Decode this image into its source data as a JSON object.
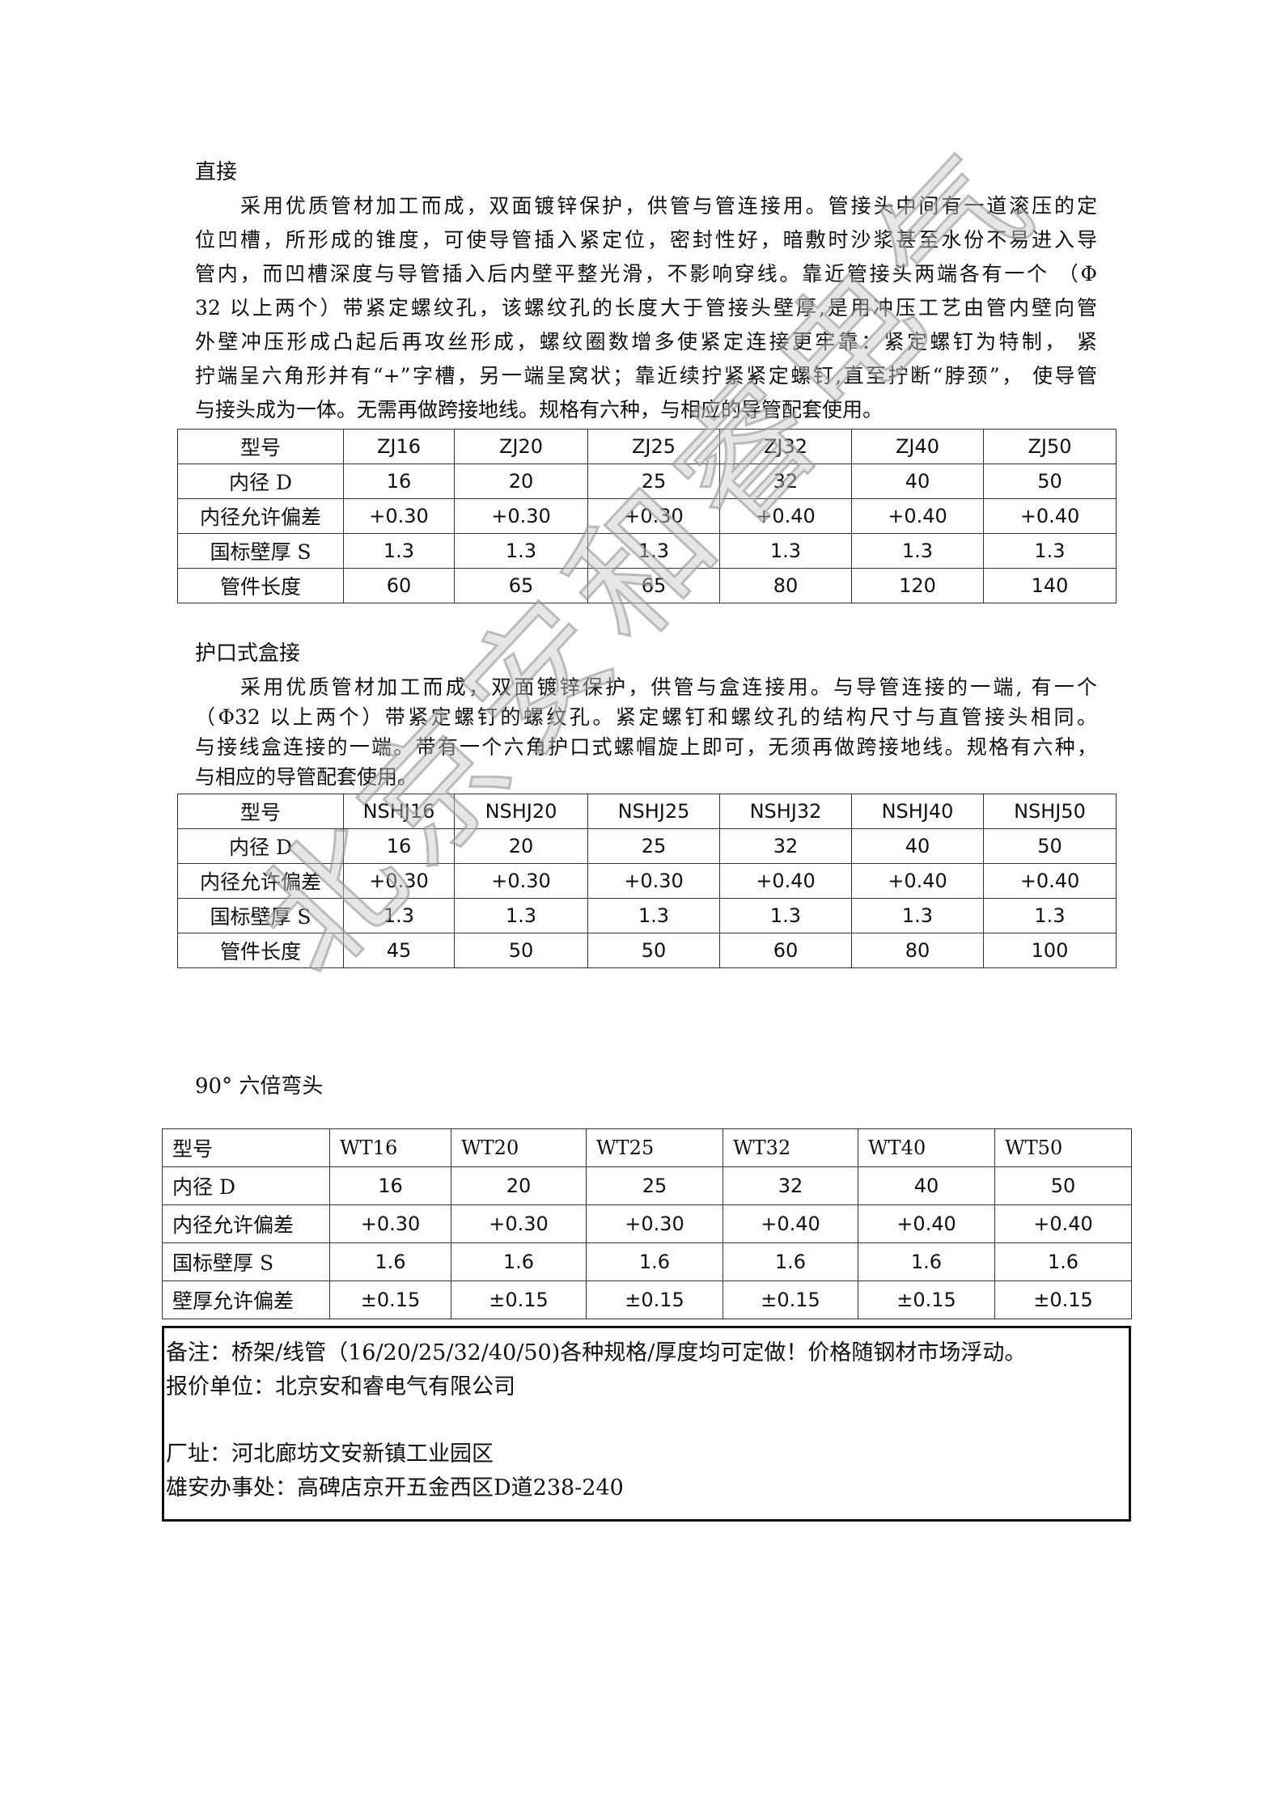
{
  "watermark": "北京安和睿电气",
  "section1": {
    "title": "直接",
    "lines": [
      "采用优质管材加工而成，双面镀锌保护，供管与管连接用。管接头中间有一道滚压的定",
      "位凹槽，所形成的锥度，可使导管插入紧定位，密封性好，暗敷时沙浆甚至水份不易进入导",
      "管内，而凹槽深度与导管插入后内壁平整光滑，不影响穿线。靠近管接头两端各有一个 （Φ",
      "32 以上两个）带紧定螺纹孔，该螺纹孔的长度大于管接头壁厚,是用冲压工艺由管内壁向管",
      "外壁冲压形成凸起后再攻丝形成，螺纹圈数增多使紧定连接更牢靠：紧定螺钉为特制， 紧",
      "拧端呈六角形并有“+”字槽，另一端呈窝状；靠近续拧紧紧定螺钉,直至拧断“脖颈”， 使导管",
      "与接头成为一体。无需再做跨接地线。规格有六种，与相应的导管配套使用。"
    ],
    "table": [
      [
        "型号",
        "ZJ16",
        "ZJ20",
        "ZJ25",
        "ZJ32",
        "ZJ40",
        "ZJ50"
      ],
      [
        "内径 D",
        "16",
        "20",
        "25",
        "32",
        "40",
        "50"
      ],
      [
        "内径允许偏差",
        "+0.30",
        "+0.30",
        "+0.30",
        "+0.40",
        "+0.40",
        "+0.40"
      ],
      [
        "国标壁厚 S",
        "1.3",
        "1.3",
        "1.3",
        "1.3",
        "1.3",
        "1.3"
      ],
      [
        "管件长度",
        "60",
        "65",
        "65",
        "80",
        "120",
        "140"
      ]
    ]
  },
  "section2": {
    "title": "护口式盒接",
    "lines": [
      "采用优质管材加工而成，双面镀锌保护，供管与盒连接用。与导管连接的一端, 有一个",
      "（Φ32 以上两个）带紧定螺钉的螺纹孔。紧定螺钉和螺纹孔的结构尺寸与直管接头相同。",
      "与接线盒连接的一端。带有一个六角护口式螺帽旋上即可，无须再做跨接地线。规格有六种，",
      "与相应的导管配套使用。"
    ],
    "table": [
      [
        "型号",
        "NSHJ16",
        "NSHJ20",
        "NSHJ25",
        "NSHJ32",
        "NSHJ40",
        "NSHJ50"
      ],
      [
        "内径 D",
        "16",
        "20",
        "25",
        "32",
        "40",
        "50"
      ],
      [
        "内径允许偏差",
        "+0.30",
        "+0.30",
        "+0.30",
        "+0.40",
        "+0.40",
        "+0.40"
      ],
      [
        "国标壁厚 S",
        "1.3",
        "1.3",
        "1.3",
        "1.3",
        "1.3",
        "1.3"
      ],
      [
        "管件长度",
        "45",
        "50",
        "50",
        "60",
        "80",
        "100"
      ]
    ]
  },
  "section3": {
    "title": "90° 六倍弯头",
    "table": [
      [
        "型号",
        "WT16",
        "WT20",
        "WT25",
        "WT32",
        "WT40",
        "WT50"
      ],
      [
        "内径 D",
        "16",
        "20",
        "25",
        "32",
        "40",
        "50"
      ],
      [
        "内径允许偏差",
        "+0.30",
        "+0.30",
        "+0.30",
        "+0.40",
        "+0.40",
        "+0.40"
      ],
      [
        "国标壁厚 S",
        "1.6",
        "1.6",
        "1.6",
        "1.6",
        "1.6",
        "1.6"
      ],
      [
        "壁厚允许偏差",
        "±0.15",
        "±0.15",
        "±0.15",
        "±0.15",
        "±0.15",
        "±0.15"
      ]
    ]
  },
  "note": {
    "remark": "备注：桥架/线管（16/20/25/32/40/50)各种规格/厚度均可定做！价格随钢材市场浮动。",
    "company": "报价单位：北京安和睿电气有限公司",
    "factory": "厂址：河北廊坊文安新镇工业园区",
    "office": "雄安办事处：高碑店京开五金西区D道238-240"
  }
}
